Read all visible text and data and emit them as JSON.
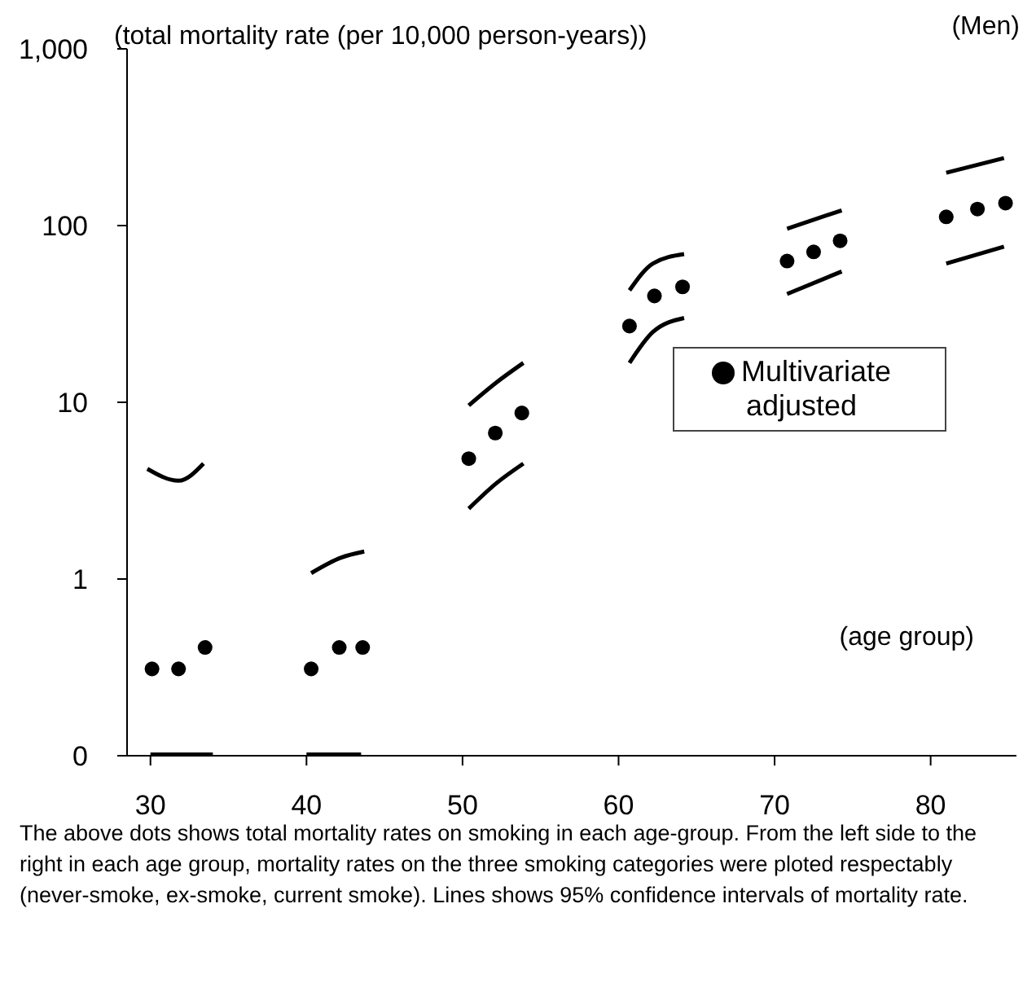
{
  "chart_data": {
    "type": "scatter",
    "ylabel": "(total mortality rate (per 10,000 person-years))",
    "annotations": [
      "(Men)",
      "(age group)",
      "The above dots shows total mortality rates on smoking in each age-group. From the left side to the right in each age group,  mortality rates on the three smoking categories were ploted respectably (never-smoke, ex-smoke, current smoke). Lines shows 95% confidence intervals of mortality rate."
    ],
    "log": "y",
    "xlim": [
      28.5,
      85.5
    ],
    "xticks": [
      30,
      40,
      50,
      60,
      70,
      80
    ],
    "ylim": [
      0.1,
      1000
    ],
    "yticks": [
      {
        "value": 0.1,
        "label": "0"
      },
      1,
      10,
      100,
      {
        "value": 1000,
        "label": "1,000"
      }
    ],
    "legend": "right",
    "grid": false,
    "marker": "circle",
    "series": [
      {
        "name": "Multivariate adjusted",
        "color": "#000000",
        "x": [
          30.1,
          31.8,
          33.5,
          40.3,
          42.1,
          43.6,
          50.4,
          52.1,
          53.8,
          60.7,
          62.3,
          64.1,
          70.8,
          72.5,
          74.2,
          81,
          83,
          84.8
        ],
        "values": [
          0.31,
          0.31,
          0.41,
          0.31,
          0.41,
          0.41,
          4.8,
          6.7,
          8.7,
          27,
          40,
          45,
          63,
          71,
          82,
          112,
          124,
          134
        ]
      },
      {
        "type": "line",
        "marker": "none",
        "color": "#000000",
        "x": [
          29.8,
          31.8,
          33.4
        ],
        "values": [
          4.2,
          3.6,
          4.5
        ]
      },
      {
        "type": "line",
        "marker": "none",
        "color": "#000000",
        "x": [
          30,
          34
        ],
        "values": [
          0.1,
          0.1
        ]
      },
      {
        "type": "line",
        "marker": "none",
        "color": "#000000",
        "x": [
          40.3,
          42.2,
          43.7
        ],
        "values": [
          1.08,
          1.32,
          1.43
        ]
      },
      {
        "type": "line",
        "marker": "none",
        "color": "#000000",
        "x": [
          40,
          43.5
        ],
        "values": [
          0.1,
          0.1
        ]
      },
      {
        "type": "line",
        "marker": "none",
        "color": "#000000",
        "x": [
          50.4,
          52.2,
          53.9
        ],
        "values": [
          9.6,
          13,
          16.7
        ]
      },
      {
        "type": "line",
        "marker": "none",
        "color": "#000000",
        "x": [
          50.4,
          52.2,
          53.9
        ],
        "values": [
          2.5,
          3.5,
          4.5
        ]
      },
      {
        "type": "line",
        "marker": "none",
        "color": "#000000",
        "x": [
          60.7,
          62.2,
          64.2
        ],
        "values": [
          43,
          61,
          69
        ]
      },
      {
        "type": "line",
        "marker": "none",
        "color": "#000000",
        "x": [
          60.7,
          62.2,
          64.2
        ],
        "values": [
          16.7,
          25,
          30
        ]
      },
      {
        "type": "line",
        "marker": "none",
        "color": "#000000",
        "x": [
          70.8,
          74.3
        ],
        "values": [
          96,
          122
        ]
      },
      {
        "type": "line",
        "marker": "none",
        "color": "#000000",
        "x": [
          70.8,
          74.3
        ],
        "values": [
          41,
          55
        ]
      },
      {
        "type": "line",
        "marker": "none",
        "color": "#000000",
        "x": [
          81,
          84.7
        ],
        "values": [
          199,
          241
        ]
      },
      {
        "type": "line",
        "marker": "none",
        "color": "#000000",
        "x": [
          81,
          84.7
        ],
        "values": [
          61,
          76
        ]
      }
    ]
  }
}
